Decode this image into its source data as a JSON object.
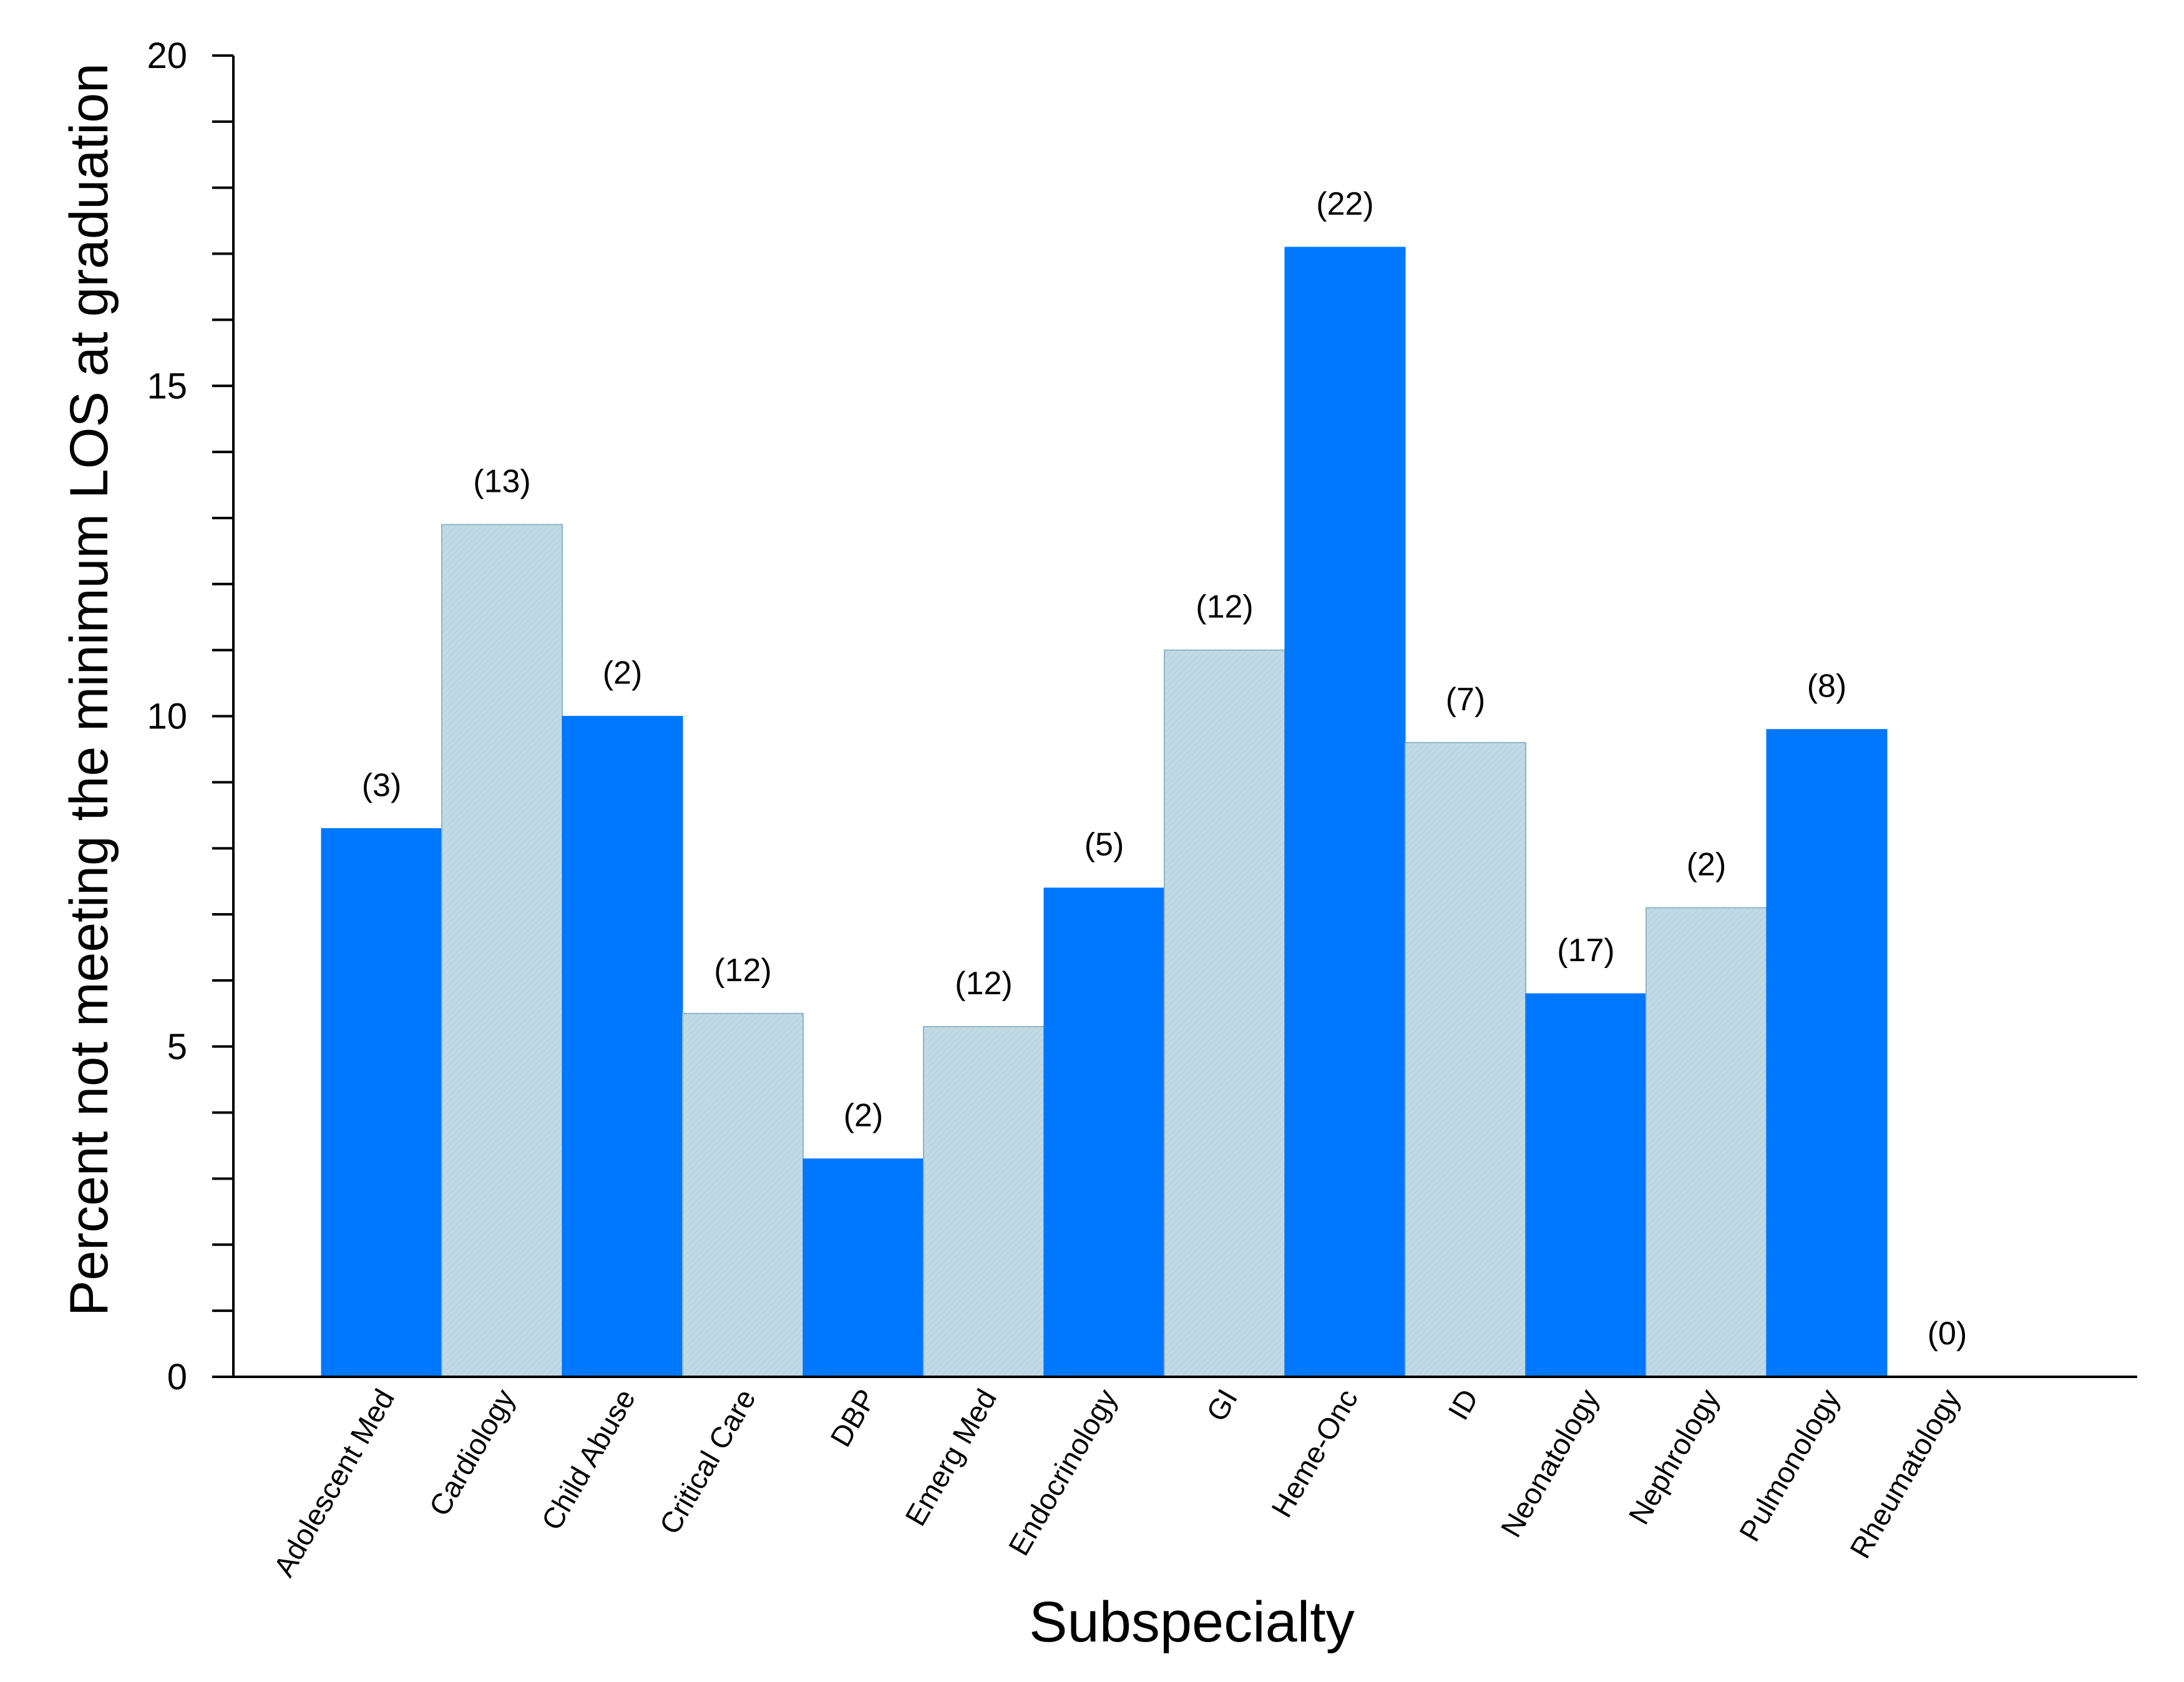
{
  "chart_data": {
    "type": "bar",
    "title": "",
    "xlabel": "Subspecialty",
    "ylabel": "Percent not meeting the minimum LOS at graduation",
    "ylim": [
      0,
      20
    ],
    "yticks": [
      "0",
      "5",
      "10",
      "15",
      "20"
    ],
    "grid": false,
    "legend": "none",
    "categories": [
      "Adolescent Med",
      "Cardiology",
      "Child Abuse",
      "Critical Care",
      "DBP",
      "Emerg Med",
      "Endocrinology",
      "GI",
      "Heme-Onc",
      "ID",
      "Neonatology",
      "Nephrology",
      "Pulmonology",
      "Rheumatology"
    ],
    "values": [
      8.3,
      12.9,
      10.0,
      5.5,
      3.3,
      5.3,
      7.4,
      11.0,
      17.1,
      9.6,
      5.8,
      7.1,
      9.8,
      0
    ],
    "count_labels": [
      "(3)",
      "(13)",
      "(2)",
      "(12)",
      "(2)",
      "(12)",
      "(5)",
      "(12)",
      "(22)",
      "(7)",
      "(17)",
      "(2)",
      "(8)",
      "(0)"
    ],
    "colors": {
      "dark": "#0077ff",
      "light": "#c1dbe6",
      "light_stroke": "#8fb4c6",
      "axis": "#000000"
    }
  }
}
